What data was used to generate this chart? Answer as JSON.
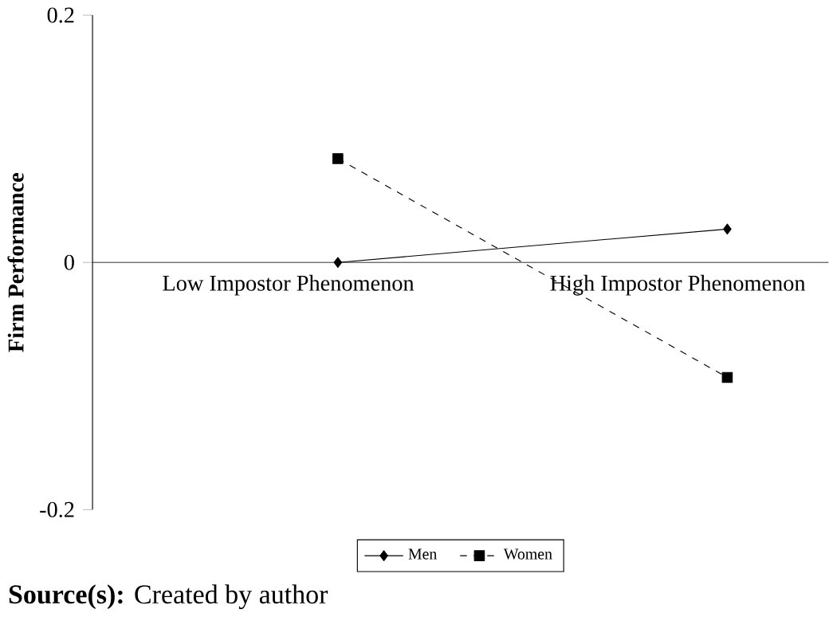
{
  "chart_data": {
    "type": "line",
    "ylabel": "Firm Performance",
    "categories": [
      "Low Impostor Phenomenon",
      "High Impostor Phenomenon"
    ],
    "series": [
      {
        "name": "Men",
        "color": "#000000",
        "values": [
          0,
          0.027
        ],
        "marker": "diamond",
        "line_style": "solid"
      },
      {
        "name": "Women",
        "color": "#000000",
        "values": [
          0.084,
          -0.093
        ],
        "marker": "square",
        "line_style": "dashed"
      }
    ],
    "ylim": [
      -0.2,
      0.2
    ],
    "yticks": [
      -0.2,
      0,
      0.2
    ],
    "legend": "bottom",
    "annotations": [
      "**Source(s):** Created by author"
    ]
  }
}
